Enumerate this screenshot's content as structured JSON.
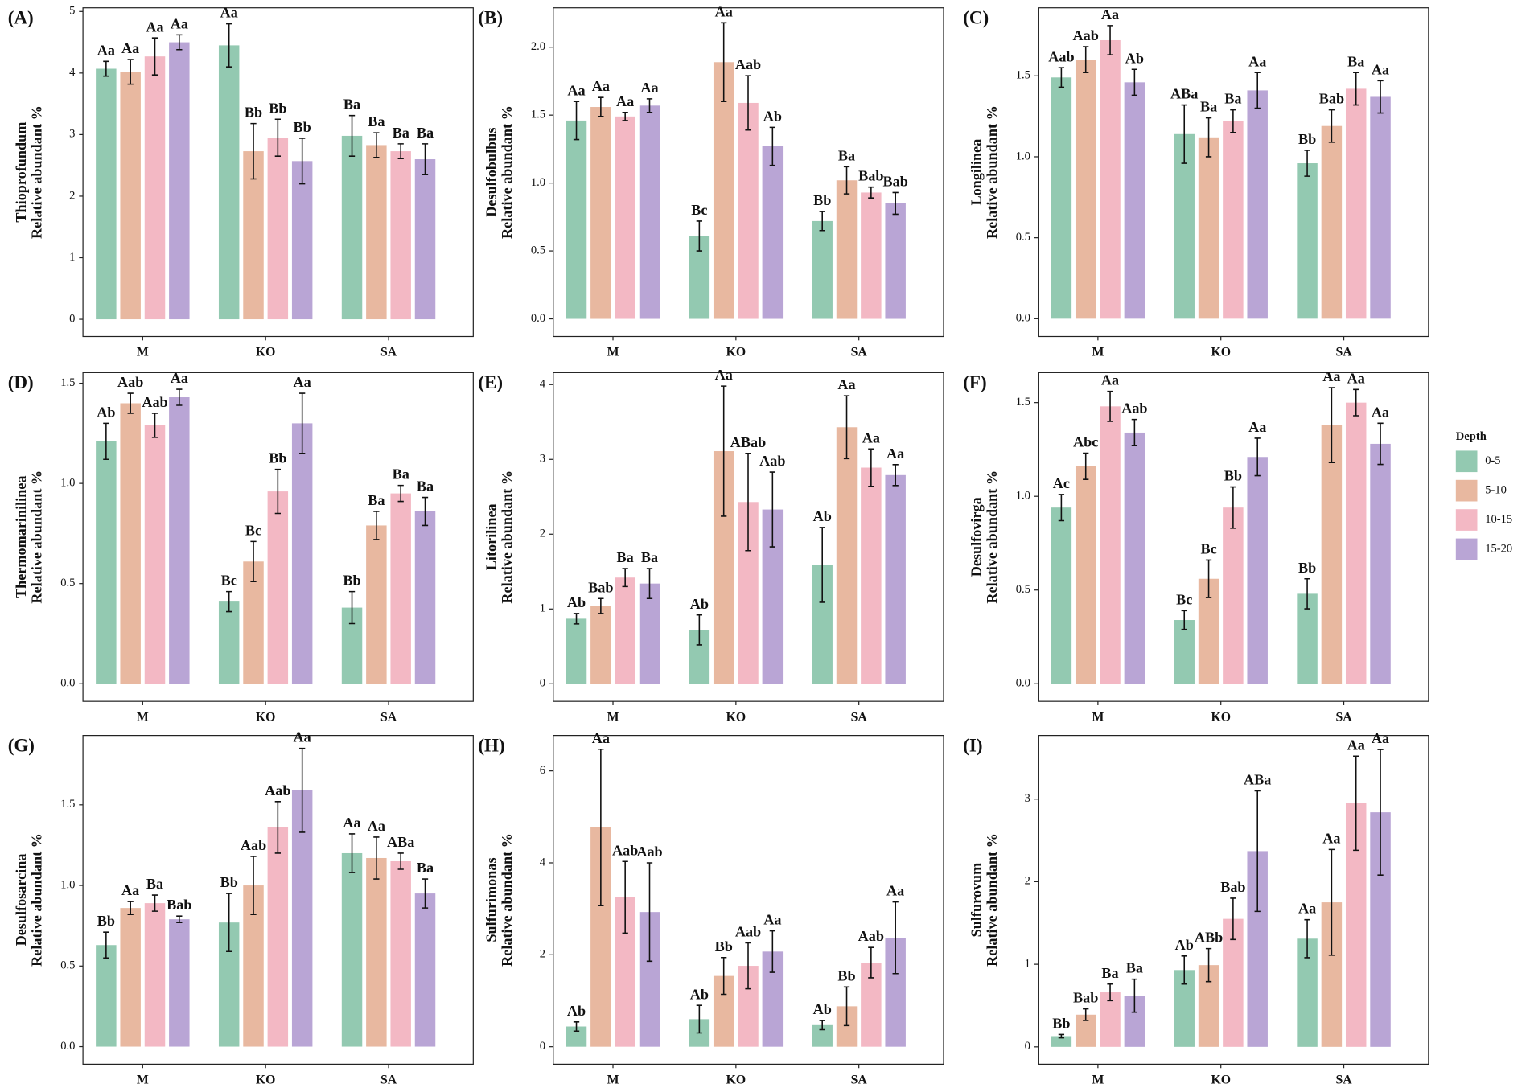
{
  "chart_data": [
    {
      "type": "bar",
      "panel_label": "(A)",
      "ylabel": [
        "Thioprofundum",
        "Relative abundant %"
      ],
      "categories": [
        "M",
        "KO",
        "SA"
      ],
      "ylim": [
        -0.28,
        5.06
      ],
      "yticks": [
        0,
        1,
        2,
        3,
        4,
        5
      ],
      "legend_title": "Depth",
      "series": [
        {
          "name": "0-5",
          "color": "#93c9b1",
          "values": [
            4.07,
            4.45,
            2.98
          ],
          "errors": [
            0.12,
            0.35,
            0.33
          ],
          "letters": [
            "Aa",
            "Aa",
            "Ba"
          ]
        },
        {
          "name": "5-10",
          "color": "#e8b8a0",
          "values": [
            4.02,
            2.73,
            2.83
          ],
          "errors": [
            0.2,
            0.45,
            0.2
          ],
          "letters": [
            "Aa",
            "Bb",
            "Ba"
          ]
        },
        {
          "name": "10-15",
          "color": "#f3b8c4",
          "values": [
            4.27,
            2.95,
            2.73
          ],
          "errors": [
            0.3,
            0.3,
            0.12
          ],
          "letters": [
            "Aa",
            "Bb",
            "Ba"
          ]
        },
        {
          "name": "15-20",
          "color": "#b9a5d5",
          "values": [
            4.5,
            2.57,
            2.6
          ],
          "errors": [
            0.12,
            0.37,
            0.25
          ],
          "letters": [
            "Aa",
            "Bb",
            "Ba"
          ]
        }
      ]
    },
    {
      "type": "bar",
      "panel_label": "(B)",
      "ylabel": [
        "Desulfobulbus",
        "Relative abundant %"
      ],
      "categories": [
        "M",
        "KO",
        "SA"
      ],
      "ylim": [
        -0.13,
        2.29
      ],
      "yticks": [
        {
          "value": 0,
          "label": "0.0"
        },
        0.5,
        {
          "value": 1,
          "label": "1.0"
        },
        1.5,
        {
          "value": 2,
          "label": "2.0"
        }
      ],
      "series": [
        {
          "name": "0-5",
          "color": "#93c9b1",
          "values": [
            1.46,
            0.61,
            0.72
          ],
          "errors": [
            0.14,
            0.11,
            0.07
          ],
          "letters": [
            "Aa",
            "Bc",
            "Bb"
          ]
        },
        {
          "name": "5-10",
          "color": "#e8b8a0",
          "values": [
            1.56,
            1.89,
            1.02
          ],
          "errors": [
            0.07,
            0.29,
            0.1
          ],
          "letters": [
            "Aa",
            "Aa",
            "Ba"
          ]
        },
        {
          "name": "10-15",
          "color": "#f3b8c4",
          "values": [
            1.49,
            1.59,
            0.93
          ],
          "errors": [
            0.03,
            0.2,
            0.04
          ],
          "letters": [
            "Aa",
            "Aab",
            "Bab"
          ]
        },
        {
          "name": "15-20",
          "color": "#b9a5d5",
          "values": [
            1.57,
            1.27,
            0.85
          ],
          "errors": [
            0.05,
            0.14,
            0.08
          ],
          "letters": [
            "Aa",
            "Ab",
            "Bab"
          ]
        }
      ]
    },
    {
      "type": "bar",
      "panel_label": "(C)",
      "ylabel": [
        "Longilinea",
        "Relative abundant %"
      ],
      "categories": [
        "M",
        "KO",
        "SA"
      ],
      "ylim": [
        -0.11,
        1.92
      ],
      "yticks": [
        {
          "value": 0,
          "label": "0.0"
        },
        0.5,
        {
          "value": 1,
          "label": "1.0"
        },
        1.5
      ],
      "series": [
        {
          "name": "0-5",
          "color": "#93c9b1",
          "values": [
            1.49,
            1.14,
            0.96
          ],
          "errors": [
            0.06,
            0.18,
            0.08
          ],
          "letters": [
            "Aab",
            "ABa",
            "Bb"
          ]
        },
        {
          "name": "5-10",
          "color": "#e8b8a0",
          "values": [
            1.6,
            1.12,
            1.19
          ],
          "errors": [
            0.08,
            0.12,
            0.1
          ],
          "letters": [
            "Aab",
            "Ba",
            "Bab"
          ]
        },
        {
          "name": "10-15",
          "color": "#f3b8c4",
          "values": [
            1.72,
            1.22,
            1.42
          ],
          "errors": [
            0.09,
            0.07,
            0.1
          ],
          "letters": [
            "Aa",
            "Ba",
            "Ba"
          ]
        },
        {
          "name": "15-20",
          "color": "#b9a5d5",
          "values": [
            1.46,
            1.41,
            1.37
          ],
          "errors": [
            0.08,
            0.11,
            0.1
          ],
          "letters": [
            "Ab",
            "Aa",
            "Aa"
          ]
        }
      ]
    },
    {
      "type": "bar",
      "panel_label": "(D)",
      "ylabel": [
        "Thermomarinilinea",
        "Relative abundant %"
      ],
      "categories": [
        "M",
        "KO",
        "SA"
      ],
      "ylim": [
        -0.088,
        1.553
      ],
      "yticks": [
        {
          "value": 0,
          "label": "0.0"
        },
        0.5,
        {
          "value": 1,
          "label": "1.0"
        },
        1.5
      ],
      "series": [
        {
          "name": "0-5",
          "color": "#93c9b1",
          "values": [
            1.21,
            0.41,
            0.38
          ],
          "errors": [
            0.09,
            0.05,
            0.08
          ],
          "letters": [
            "Ab",
            "Bc",
            "Bb"
          ]
        },
        {
          "name": "5-10",
          "color": "#e8b8a0",
          "values": [
            1.4,
            0.61,
            0.79
          ],
          "errors": [
            0.05,
            0.1,
            0.07
          ],
          "letters": [
            "Aab",
            "Bc",
            "Ba"
          ]
        },
        {
          "name": "10-15",
          "color": "#f3b8c4",
          "values": [
            1.29,
            0.96,
            0.95
          ],
          "errors": [
            0.06,
            0.11,
            0.04
          ],
          "letters": [
            "Aab",
            "Bb",
            "Ba"
          ]
        },
        {
          "name": "15-20",
          "color": "#b9a5d5",
          "values": [
            1.43,
            1.3,
            0.86
          ],
          "errors": [
            0.04,
            0.15,
            0.07
          ],
          "letters": [
            "Aa",
            "Aa",
            "Ba"
          ]
        }
      ]
    },
    {
      "type": "bar",
      "panel_label": "(E)",
      "ylabel": [
        "Litorilinea",
        "Relative abundant %"
      ],
      "categories": [
        "M",
        "KO",
        "SA"
      ],
      "ylim": [
        -0.235,
        4.16
      ],
      "yticks": [
        0,
        1,
        2,
        3,
        4
      ],
      "series": [
        {
          "name": "0-5",
          "color": "#93c9b1",
          "values": [
            0.87,
            0.72,
            1.59
          ],
          "errors": [
            0.07,
            0.2,
            0.5
          ],
          "letters": [
            "Ab",
            "Ab",
            "Ab"
          ]
        },
        {
          "name": "5-10",
          "color": "#e8b8a0",
          "values": [
            1.04,
            3.11,
            3.43
          ],
          "errors": [
            0.1,
            0.87,
            0.42
          ],
          "letters": [
            "Bab",
            "Aa",
            "Aa"
          ]
        },
        {
          "name": "10-15",
          "color": "#f3b8c4",
          "values": [
            1.42,
            2.43,
            2.89
          ],
          "errors": [
            0.12,
            0.65,
            0.25
          ],
          "letters": [
            "Ba",
            "ABab",
            "Aa"
          ]
        },
        {
          "name": "15-20",
          "color": "#b9a5d5",
          "values": [
            1.34,
            2.33,
            2.79
          ],
          "errors": [
            0.2,
            0.5,
            0.14
          ],
          "letters": [
            "Ba",
            "Aab",
            "Aa"
          ]
        }
      ]
    },
    {
      "type": "bar",
      "panel_label": "(F)",
      "ylabel": [
        "Desulfovirga",
        "Relative abundant %"
      ],
      "categories": [
        "M",
        "KO",
        "SA"
      ],
      "ylim": [
        -0.094,
        1.66
      ],
      "yticks": [
        {
          "value": 0,
          "label": "0.0"
        },
        0.5,
        {
          "value": 1,
          "label": "1.0"
        },
        1.5
      ],
      "series": [
        {
          "name": "0-5",
          "color": "#93c9b1",
          "values": [
            0.94,
            0.34,
            0.48
          ],
          "errors": [
            0.07,
            0.05,
            0.08
          ],
          "letters": [
            "Ac",
            "Bc",
            "Bb"
          ]
        },
        {
          "name": "5-10",
          "color": "#e8b8a0",
          "values": [
            1.16,
            0.56,
            1.38
          ],
          "errors": [
            0.07,
            0.1,
            0.2
          ],
          "letters": [
            "Abc",
            "Bc",
            "Aa"
          ]
        },
        {
          "name": "10-15",
          "color": "#f3b8c4",
          "values": [
            1.48,
            0.94,
            1.5
          ],
          "errors": [
            0.08,
            0.11,
            0.07
          ],
          "letters": [
            "Aa",
            "Bb",
            "Aa"
          ]
        },
        {
          "name": "15-20",
          "color": "#b9a5d5",
          "values": [
            1.34,
            1.21,
            1.28
          ],
          "errors": [
            0.07,
            0.1,
            0.11
          ],
          "letters": [
            "Aab",
            "Aa",
            "Aa"
          ]
        }
      ]
    },
    {
      "type": "bar",
      "panel_label": "(G)",
      "ylabel": [
        "Desulfosarcina",
        "Relative abundant %"
      ],
      "categories": [
        "M",
        "KO",
        "SA"
      ],
      "ylim": [
        -0.109,
        1.93
      ],
      "yticks": [
        {
          "value": 0,
          "label": "0.0"
        },
        0.5,
        {
          "value": 1,
          "label": "1.0"
        },
        1.5
      ],
      "series": [
        {
          "name": "0-5",
          "color": "#93c9b1",
          "values": [
            0.63,
            0.77,
            1.2
          ],
          "errors": [
            0.08,
            0.18,
            0.12
          ],
          "letters": [
            "Bb",
            "Bb",
            "Aa"
          ]
        },
        {
          "name": "5-10",
          "color": "#e8b8a0",
          "values": [
            0.86,
            1.0,
            1.17
          ],
          "errors": [
            0.04,
            0.18,
            0.13
          ],
          "letters": [
            "Aa",
            "Aab",
            "Aa"
          ]
        },
        {
          "name": "10-15",
          "color": "#f3b8c4",
          "values": [
            0.89,
            1.36,
            1.15
          ],
          "errors": [
            0.05,
            0.16,
            0.05
          ],
          "letters": [
            "Ba",
            "Aab",
            "ABa"
          ]
        },
        {
          "name": "15-20",
          "color": "#b9a5d5",
          "values": [
            0.79,
            1.59,
            0.95
          ],
          "errors": [
            0.02,
            0.26,
            0.09
          ],
          "letters": [
            "Bab",
            "Aa",
            "Ba"
          ]
        }
      ]
    },
    {
      "type": "bar",
      "panel_label": "(H)",
      "ylabel": [
        "Sulfurimonas",
        "Relative abundant %"
      ],
      "categories": [
        "M",
        "KO",
        "SA"
      ],
      "ylim": [
        -0.38,
        6.77
      ],
      "yticks": [
        0,
        2,
        4,
        6
      ],
      "series": [
        {
          "name": "0-5",
          "color": "#93c9b1",
          "values": [
            0.44,
            0.6,
            0.47
          ],
          "errors": [
            0.1,
            0.3,
            0.1
          ],
          "letters": [
            "Ab",
            "Ab",
            "Ab"
          ]
        },
        {
          "name": "5-10",
          "color": "#e8b8a0",
          "values": [
            4.77,
            1.54,
            0.88
          ],
          "errors": [
            1.7,
            0.4,
            0.42
          ],
          "letters": [
            "Aa",
            "Bb",
            "Bb"
          ]
        },
        {
          "name": "10-15",
          "color": "#f3b8c4",
          "values": [
            3.25,
            1.76,
            1.83
          ],
          "errors": [
            0.78,
            0.5,
            0.33
          ],
          "letters": [
            "Aab",
            "Aab",
            "Aab"
          ]
        },
        {
          "name": "15-20",
          "color": "#b9a5d5",
          "values": [
            2.93,
            2.07,
            2.37
          ],
          "errors": [
            1.07,
            0.45,
            0.78
          ],
          "letters": [
            "Aab",
            "Aa",
            "Aa"
          ]
        }
      ]
    },
    {
      "type": "bar",
      "panel_label": "(I)",
      "ylabel": [
        "Sulfurovum",
        "Relative abundant %"
      ],
      "categories": [
        "M",
        "KO",
        "SA"
      ],
      "ylim": [
        -0.21,
        3.77
      ],
      "yticks": [
        0,
        1,
        2,
        3
      ],
      "series": [
        {
          "name": "0-5",
          "color": "#93c9b1",
          "values": [
            0.13,
            0.93,
            1.31
          ],
          "errors": [
            0.02,
            0.17,
            0.23
          ],
          "letters": [
            "Bb",
            "Ab",
            "Aa"
          ]
        },
        {
          "name": "5-10",
          "color": "#e8b8a0",
          "values": [
            0.39,
            0.99,
            1.75
          ],
          "errors": [
            0.07,
            0.2,
            0.64
          ],
          "letters": [
            "Bab",
            "ABb",
            "Aa"
          ]
        },
        {
          "name": "10-15",
          "color": "#f3b8c4",
          "values": [
            0.66,
            1.55,
            2.95
          ],
          "errors": [
            0.1,
            0.25,
            0.57
          ],
          "letters": [
            "Ba",
            "Bab",
            "Aa"
          ]
        },
        {
          "name": "15-20",
          "color": "#b9a5d5",
          "values": [
            0.62,
            2.37,
            2.84
          ],
          "errors": [
            0.2,
            0.73,
            0.76
          ],
          "letters": [
            "Ba",
            "ABa",
            "Aa"
          ]
        }
      ]
    }
  ]
}
